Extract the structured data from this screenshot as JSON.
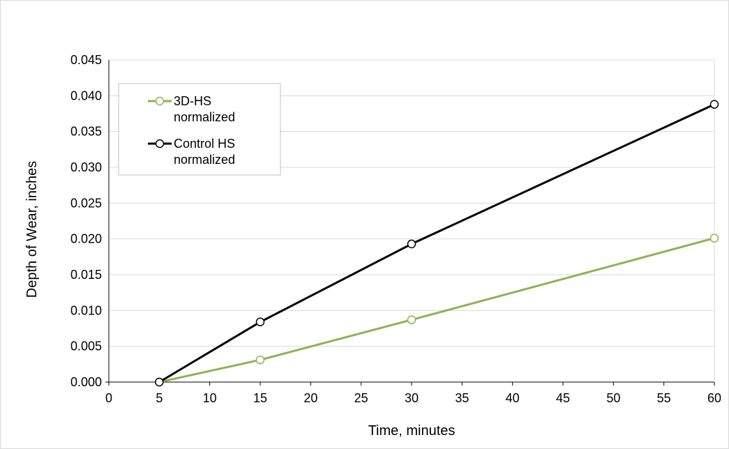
{
  "chart_data": {
    "type": "line",
    "title": "",
    "xlabel": "Time, minutes",
    "ylabel": "Depth of Wear, inches",
    "xlim": [
      0,
      60
    ],
    "ylim": [
      0,
      0.045
    ],
    "x_ticks": [
      "0",
      "5",
      "10",
      "15",
      "20",
      "25",
      "30",
      "35",
      "40",
      "45",
      "50",
      "55",
      "60"
    ],
    "y_ticks": [
      "0.000",
      "0.005",
      "0.010",
      "0.015",
      "0.020",
      "0.025",
      "0.030",
      "0.035",
      "0.040",
      "0.045"
    ],
    "grid": "horizontal",
    "legend_position": "top-left",
    "series": [
      {
        "name": "3D-HS normalized",
        "name_lines": [
          "3D-HS",
          "normalized"
        ],
        "color": "#8db355",
        "marker_fill": "#ffffff",
        "x": [
          5,
          15,
          30,
          60
        ],
        "y": [
          0.0,
          0.0031,
          0.0087,
          0.0201
        ]
      },
      {
        "name": "Control HS normalized",
        "name_lines": [
          "Control HS",
          "normalized"
        ],
        "color": "#000000",
        "marker_fill": "#ffffff",
        "x": [
          5,
          15,
          30,
          60
        ],
        "y": [
          0.0,
          0.0084,
          0.0193,
          0.0388
        ]
      }
    ]
  }
}
